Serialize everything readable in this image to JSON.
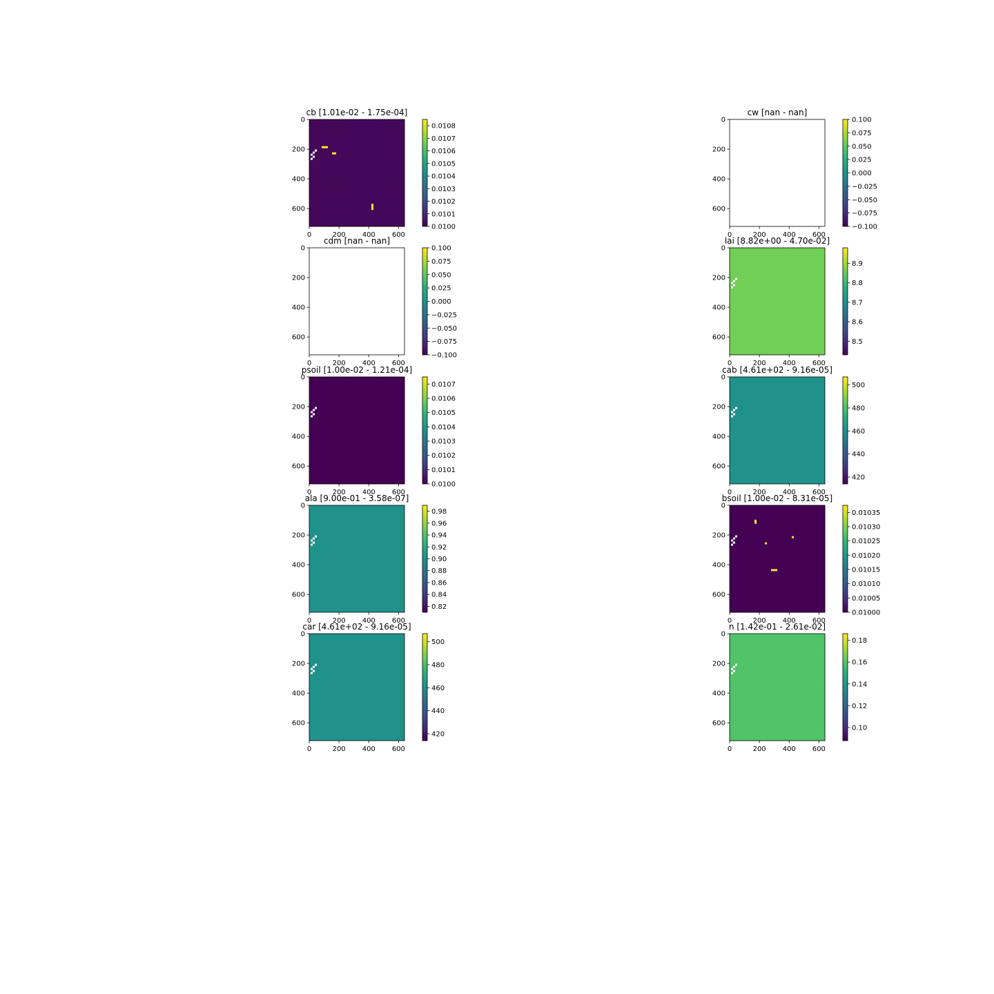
{
  "figure": {
    "background": "#ffffff",
    "colormap": "viridis"
  },
  "chart_data": [
    {
      "type": "heatmap",
      "title": "cb [1.01e-02 - 1.75e-04]",
      "xticks": [
        "0",
        "200",
        "400",
        "600"
      ],
      "yticks": [
        "0",
        "200",
        "400",
        "600"
      ],
      "xlim": [
        0,
        640
      ],
      "ylim": [
        720,
        0
      ],
      "colorbar_ticks": [
        "0.0108",
        "0.0107",
        "0.0106",
        "0.0105",
        "0.0104",
        "0.0103",
        "0.0102",
        "0.0101",
        "0.0100"
      ],
      "colorbar_range": [
        0.01,
        0.01085
      ],
      "pattern": "patchy",
      "background_level": 0.02,
      "patch_levels": [
        0.55,
        0.35
      ],
      "patch_fraction": 0.38,
      "hotspot_level": 1.0,
      "hotspot_count": 3,
      "seed": 11,
      "has_nan_gap": true
    },
    {
      "type": "heatmap",
      "title": "cw [nan - nan]",
      "xticks": [
        "0",
        "200",
        "400",
        "600"
      ],
      "yticks": [
        "0",
        "200",
        "400",
        "600"
      ],
      "xlim": [
        0,
        640
      ],
      "ylim": [
        720,
        0
      ],
      "colorbar_ticks": [
        "0.100",
        "0.075",
        "0.050",
        "0.025",
        "0.000",
        "−0.025",
        "−0.050",
        "−0.075",
        "−0.100"
      ],
      "colorbar_range": [
        -0.1,
        0.1
      ],
      "pattern": "empty",
      "has_nan_gap": false
    },
    {
      "type": "heatmap",
      "title": "cdm [nan - nan]",
      "xticks": [
        "0",
        "200",
        "400",
        "600"
      ],
      "yticks": [
        "0",
        "200",
        "400",
        "600"
      ],
      "xlim": [
        0,
        640
      ],
      "ylim": [
        720,
        0
      ],
      "colorbar_ticks": [
        "0.100",
        "0.075",
        "0.050",
        "0.025",
        "0.000",
        "−0.025",
        "−0.050",
        "−0.075",
        "−0.100"
      ],
      "colorbar_range": [
        -0.1,
        0.1
      ],
      "pattern": "empty",
      "has_nan_gap": false
    },
    {
      "type": "heatmap",
      "title": "lai [8.82e+00 - 4.70e-02]",
      "xticks": [
        "0",
        "200",
        "400",
        "600"
      ],
      "yticks": [
        "0",
        "200",
        "400",
        "600"
      ],
      "xlim": [
        0,
        640
      ],
      "ylim": [
        720,
        0
      ],
      "colorbar_ticks": [
        "8.9",
        "8.8",
        "8.7",
        "8.6",
        "8.5"
      ],
      "colorbar_range": [
        8.43,
        8.98
      ],
      "pattern": "patchy",
      "background_level": 0.78,
      "patch_levels": [
        0.88,
        0.6,
        0.35
      ],
      "patch_fraction": 0.3,
      "hotspot_level": 0.88,
      "hotspot_count": 0,
      "seed": 23,
      "has_nan_gap": true
    },
    {
      "type": "heatmap",
      "title": "psoil [1.00e-02 - 1.21e-04]",
      "xticks": [
        "0",
        "200",
        "400",
        "600"
      ],
      "yticks": [
        "0",
        "200",
        "400",
        "600"
      ],
      "xlim": [
        0,
        640
      ],
      "ylim": [
        720,
        0
      ],
      "colorbar_ticks": [
        "0.0107",
        "0.0106",
        "0.0105",
        "0.0104",
        "0.0103",
        "0.0102",
        "0.0101",
        "0.0100"
      ],
      "colorbar_range": [
        0.01,
        0.01075
      ],
      "pattern": "patchy",
      "background_level": 0.0,
      "patch_levels": [
        0.3,
        0.65
      ],
      "patch_fraction": 0.22,
      "hotspot_level": 0.65,
      "hotspot_count": 0,
      "seed": 37,
      "has_nan_gap": true
    },
    {
      "type": "heatmap",
      "title": "cab [4.61e+02 - 9.16e-05]",
      "xticks": [
        "0",
        "200",
        "400",
        "600"
      ],
      "yticks": [
        "0",
        "200",
        "400",
        "600"
      ],
      "xlim": [
        0,
        640
      ],
      "ylim": [
        720,
        0
      ],
      "colorbar_ticks": [
        "500",
        "480",
        "460",
        "440",
        "420"
      ],
      "colorbar_range": [
        414,
        507
      ],
      "pattern": "uniform",
      "background_level": 0.5,
      "has_nan_gap": true
    },
    {
      "type": "heatmap",
      "title": "ala [9.00e-01 - 3.58e-07]",
      "xticks": [
        "0",
        "200",
        "400",
        "600"
      ],
      "yticks": [
        "0",
        "200",
        "400",
        "600"
      ],
      "xlim": [
        0,
        640
      ],
      "ylim": [
        720,
        0
      ],
      "colorbar_ticks": [
        "0.98",
        "0.96",
        "0.94",
        "0.92",
        "0.90",
        "0.88",
        "0.86",
        "0.84",
        "0.82"
      ],
      "colorbar_range": [
        0.81,
        0.99
      ],
      "pattern": "uniform",
      "background_level": 0.5,
      "has_nan_gap": true
    },
    {
      "type": "heatmap",
      "title": "bsoil [1.00e-02 - 8.31e-05]",
      "xticks": [
        "0",
        "200",
        "400",
        "600"
      ],
      "yticks": [
        "0",
        "200",
        "400",
        "600"
      ],
      "xlim": [
        0,
        640
      ],
      "ylim": [
        720,
        0
      ],
      "colorbar_ticks": [
        "0.01035",
        "0.01030",
        "0.01025",
        "0.01020",
        "0.01015",
        "0.01010",
        "0.01005",
        "0.01000"
      ],
      "colorbar_range": [
        0.01,
        0.010375
      ],
      "pattern": "patchy",
      "background_level": 0.0,
      "patch_levels": [
        1.0,
        0.3
      ],
      "patch_fraction": 0.14,
      "hotspot_level": 1.0,
      "hotspot_count": 4,
      "seed": 53,
      "has_nan_gap": true
    },
    {
      "type": "heatmap",
      "title": "car [4.61e+02 - 9.16e-05]",
      "xticks": [
        "0",
        "200",
        "400",
        "600"
      ],
      "yticks": [
        "0",
        "200",
        "400",
        "600"
      ],
      "xlim": [
        0,
        640
      ],
      "ylim": [
        720,
        0
      ],
      "colorbar_ticks": [
        "500",
        "480",
        "460",
        "440",
        "420"
      ],
      "colorbar_range": [
        414,
        507
      ],
      "pattern": "uniform",
      "background_level": 0.5,
      "has_nan_gap": true
    },
    {
      "type": "heatmap",
      "title": "n [1.42e-01 - 2.61e-02]",
      "xticks": [
        "0",
        "200",
        "400",
        "600"
      ],
      "yticks": [
        "0",
        "200",
        "400",
        "600"
      ],
      "xlim": [
        0,
        640
      ],
      "ylim": [
        720,
        0
      ],
      "colorbar_ticks": [
        "0.18",
        "0.16",
        "0.14",
        "0.12",
        "0.10"
      ],
      "colorbar_range": [
        0.088,
        0.186
      ],
      "pattern": "patchy",
      "background_level": 0.72,
      "patch_levels": [
        0.18,
        0.82
      ],
      "patch_fraction": 0.34,
      "hotspot_level": 0.72,
      "hotspot_count": 0,
      "seed": 71,
      "has_nan_gap": true
    }
  ]
}
